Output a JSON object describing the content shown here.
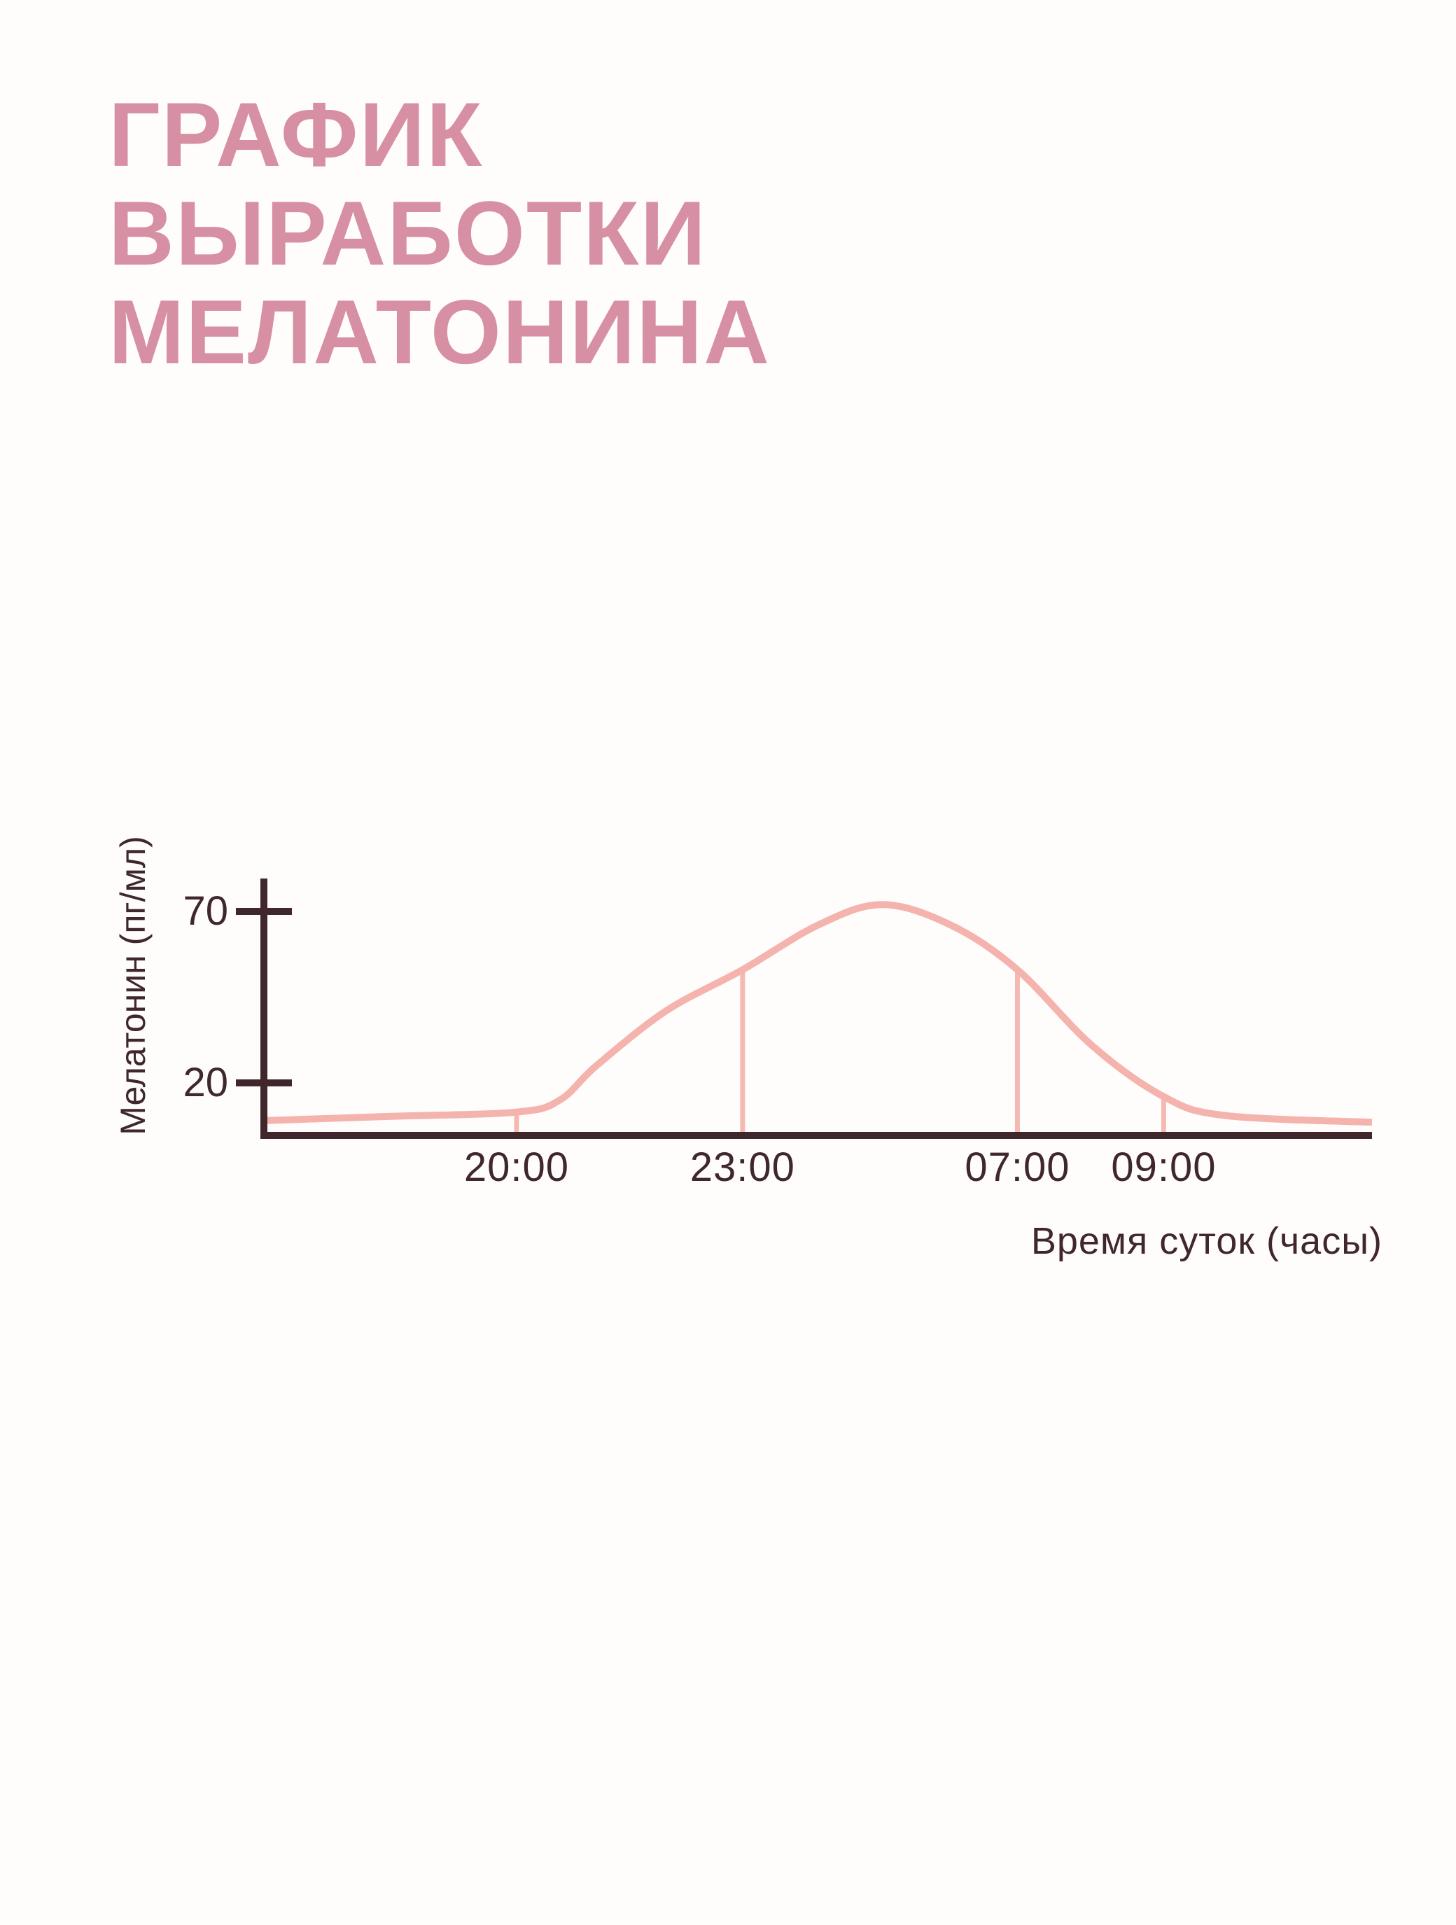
{
  "page": {
    "background": "#fffdfc"
  },
  "title": {
    "text": "ГРАФИК\nВЫРАБОТКИ\nМЕЛАТОНИНА",
    "color": "#d78fa4"
  },
  "chart_data": {
    "type": "line",
    "title": "График выработки мелатонина",
    "xlabel": "Время суток (часы)",
    "ylabel": "Мелатонин (пг/мл)",
    "legend": "none",
    "grid": false,
    "ylim": [
      0,
      78
    ],
    "colors": {
      "axis": "#3f272b",
      "text": "#3f272b",
      "curve": "#f4b3ad",
      "marker": "#f5b9b3"
    },
    "y_ticks": [
      {
        "label": "70",
        "value": 70
      },
      {
        "label": "20",
        "value": 20
      }
    ],
    "x_ticks": [
      {
        "label": "20:00",
        "f": 0.228,
        "value": 11.5
      },
      {
        "label": "23:00",
        "f": 0.432,
        "value": 53
      },
      {
        "label": "07:00",
        "f": 0.68,
        "value": 53
      },
      {
        "label": "09:00",
        "f": 0.812,
        "value": 16
      }
    ],
    "curve_points": [
      {
        "f": 0.0,
        "value": 9
      },
      {
        "f": 0.11,
        "value": 10.2
      },
      {
        "f": 0.228,
        "value": 11.5
      },
      {
        "f": 0.267,
        "value": 15
      },
      {
        "f": 0.3,
        "value": 25
      },
      {
        "f": 0.363,
        "value": 41
      },
      {
        "f": 0.432,
        "value": 53
      },
      {
        "f": 0.5,
        "value": 66
      },
      {
        "f": 0.558,
        "value": 72
      },
      {
        "f": 0.62,
        "value": 66
      },
      {
        "f": 0.68,
        "value": 53
      },
      {
        "f": 0.747,
        "value": 31
      },
      {
        "f": 0.812,
        "value": 16
      },
      {
        "f": 0.867,
        "value": 10.5
      },
      {
        "f": 1.0,
        "value": 8.5
      }
    ]
  }
}
